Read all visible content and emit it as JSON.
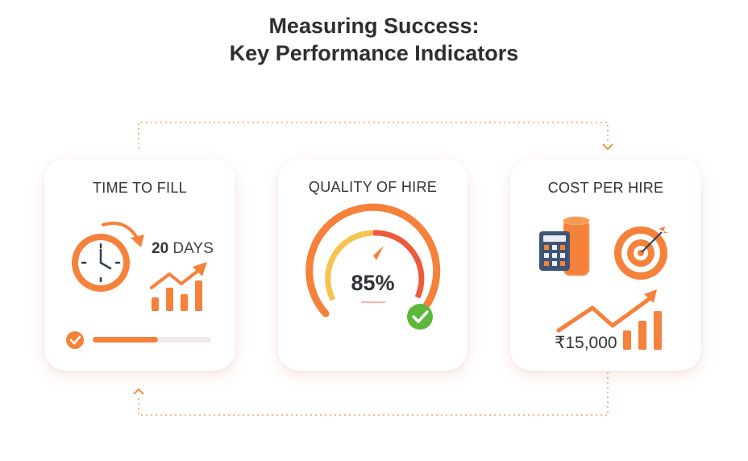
{
  "title": {
    "line1": "Measuring Success:",
    "line2": "Key Performance Indicators"
  },
  "colors": {
    "accent": "#f5813a",
    "text": "#2e2e2e",
    "success": "#5cb83a",
    "calculator": "#3f5576"
  },
  "cards": [
    {
      "title": "TIME TO FILL",
      "value_number": "20",
      "value_unit": "DAYS",
      "progress": 0.55,
      "icons": [
        "clock-icon",
        "rotate-arrow-icon",
        "trend-bar-chart-icon",
        "check-circle-icon"
      ]
    },
    {
      "title": "QUALITY OF HIRE",
      "value": "85%",
      "gauge_level": 0.85,
      "icons": [
        "gauge-icon",
        "check-badge-icon"
      ]
    },
    {
      "title": "COST PER HIRE",
      "value": "₹15,000",
      "icons": [
        "calculator-icon",
        "coin-stack-icon",
        "target-icon",
        "trend-bar-chart-icon"
      ]
    }
  ]
}
